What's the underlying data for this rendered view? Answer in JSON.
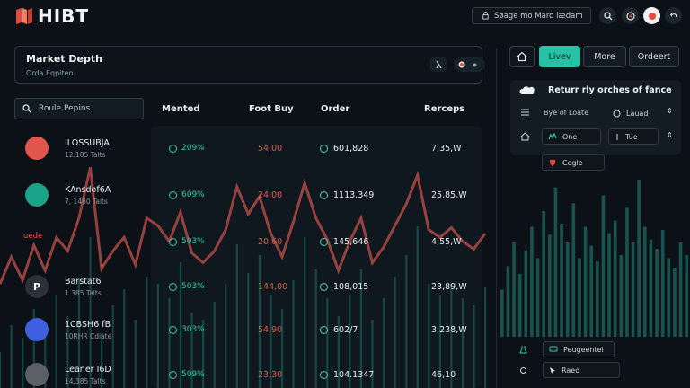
{
  "app": {
    "brand": "HIBT"
  },
  "header": {
    "search_text": "Søage mo Maro lædam",
    "icons": [
      "search-icon",
      "globe-icon",
      "profile-avatar-icon",
      "back-arrow-icon"
    ]
  },
  "depth_card": {
    "title": "Market Depth",
    "subtitle": "Orda Eqpiten"
  },
  "search": {
    "placeholder": "Roule Pepins"
  },
  "columns": {
    "mented": "Mented",
    "foot_buy": "Foot Buy",
    "order": "Order",
    "receipts": "Rerceps"
  },
  "side_label": "uede",
  "rows": [
    {
      "name": "ILOSSUBJA",
      "sub": "12.185 Talts",
      "pct": "209%",
      "buy": "54,00",
      "order": "601,828",
      "receipts": "7,35,W",
      "avatar_color": "#e2574c",
      "avatar_glyph": ""
    },
    {
      "name": "KAnsdof6A",
      "sub": "7, 1480 Talts",
      "pct": "609%",
      "buy": "24,00",
      "order": "1113,349",
      "receipts": "25,85,W",
      "avatar_color": "#1aa58a",
      "avatar_glyph": ""
    },
    {
      "name": "",
      "sub": "",
      "pct": "503%",
      "buy": "20,60",
      "order": "145,646",
      "receipts": "4,55,W",
      "avatar_color": "",
      "avatar_glyph": ""
    },
    {
      "name": "Barstat6",
      "sub": "1.385 Talts",
      "pct": "503%",
      "buy": "144,00",
      "order": "108,015",
      "receipts": "23,89,W",
      "avatar_color": "#2a3138",
      "avatar_glyph": "P"
    },
    {
      "name": "1CBSH6 fB",
      "sub": "10RHR Cdiate",
      "pct": "303%",
      "buy": "54,90",
      "order": "602/7",
      "receipts": "3,238,W",
      "avatar_color": "#3f5fe0",
      "avatar_glyph": ""
    },
    {
      "name": "Leaner I6D",
      "sub": "14.385 Talts",
      "pct": "509%",
      "buy": "23,30",
      "order": "104.1347",
      "receipts": "46,10",
      "avatar_color": "#5b6066",
      "avatar_glyph": ""
    }
  ],
  "tabs": {
    "live": "Livev",
    "more": "More",
    "order": "Ordeert"
  },
  "right_panel": {
    "title": "Returr rly orches of fance",
    "row1_label": "Bye of Loate",
    "row1_value": "Lauad",
    "row2_value1": "One",
    "row2_value2": "Tue",
    "cup_label": "Cogle",
    "bottom1": "Peugeentel",
    "bottom2": "Raed"
  },
  "chart_data": {
    "type": "line",
    "series": [
      {
        "values": [
          38,
          52,
          40,
          58,
          45,
          62,
          55,
          72,
          98,
          46,
          55,
          62,
          48,
          72,
          68,
          60,
          75,
          54,
          49,
          55,
          66,
          88,
          74,
          83,
          64,
          52,
          70,
          90,
          72,
          61,
          45,
          60,
          72,
          49,
          57,
          68,
          79,
          94,
          66,
          62,
          67,
          60,
          56,
          64
        ]
      }
    ],
    "volume": [
      20,
      35,
      28,
      44,
      30,
      52,
      40,
      60,
      84,
      30,
      46,
      55,
      38,
      62,
      58,
      50,
      70,
      42,
      38,
      48,
      58,
      80,
      64,
      74,
      52,
      44,
      60,
      84,
      66,
      50,
      40,
      52,
      66,
      38,
      50,
      62,
      74,
      90,
      58,
      52,
      58,
      50,
      46,
      56
    ],
    "right_volume": [
      30,
      45,
      60,
      40,
      55,
      70,
      50,
      80,
      65,
      95,
      72,
      60,
      85,
      50,
      70,
      58,
      48,
      90,
      66,
      74,
      52,
      82,
      60,
      100,
      70,
      62,
      56,
      68,
      50,
      44,
      60,
      52
    ],
    "colors": {
      "line": "#b04a46",
      "volume": "#1f6f68",
      "accent": "#27c2a6"
    }
  }
}
